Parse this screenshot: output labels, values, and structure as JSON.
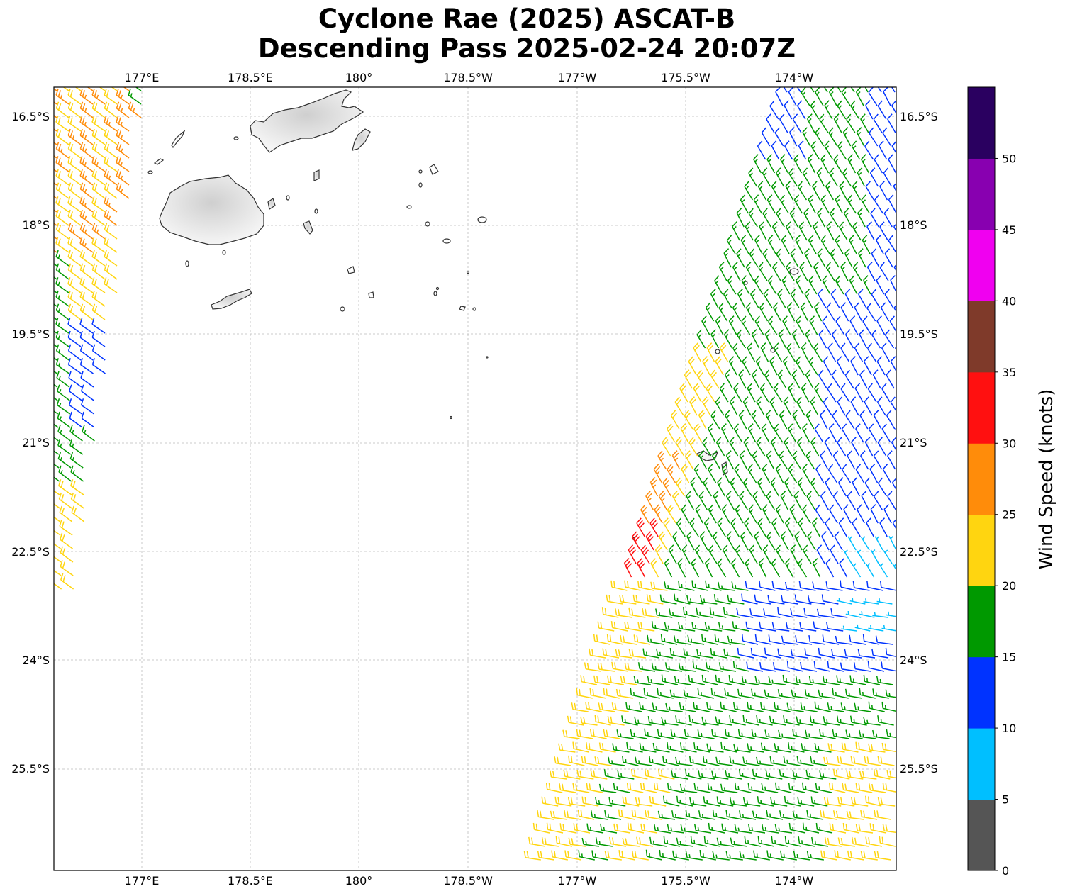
{
  "title_line1": "Cyclone Rae (2025) ASCAT-B",
  "title_line2": "Descending Pass 2025-02-24 20:07Z",
  "map": {
    "lon_labels": [
      "177°E",
      "178.5°E",
      "180°",
      "178.5°W",
      "177°W",
      "175.5°W",
      "174°W"
    ],
    "lat_labels": [
      "16.5°S",
      "18°S",
      "19.5°S",
      "21°S",
      "22.5°S",
      "24°S",
      "25.5°S"
    ],
    "land_color": "#e8e8e8",
    "coast_color": "#333333",
    "grid": "dashed"
  },
  "colorbar": {
    "label": "Wind Speed (knots)",
    "ticks": [
      "0",
      "5",
      "10",
      "15",
      "20",
      "25",
      "30",
      "35",
      "40",
      "45",
      "50"
    ],
    "bins": [
      {
        "from": 0,
        "to": 5,
        "color": "#555555"
      },
      {
        "from": 5,
        "to": 10,
        "color": "#00bfff"
      },
      {
        "from": 10,
        "to": 15,
        "color": "#0033ff"
      },
      {
        "from": 15,
        "to": 20,
        "color": "#009900"
      },
      {
        "from": 20,
        "to": 25,
        "color": "#ffd510"
      },
      {
        "from": 25,
        "to": 30,
        "color": "#ff8c0a"
      },
      {
        "from": 30,
        "to": 35,
        "color": "#ff1010"
      },
      {
        "from": 35,
        "to": 40,
        "color": "#7f3a2a"
      },
      {
        "from": 40,
        "to": 45,
        "color": "#f000f0"
      },
      {
        "from": 45,
        "to": 50,
        "color": "#8800b0"
      },
      {
        "from": 50,
        "to": 55,
        "color": "#2a0060"
      }
    ]
  },
  "chart_data": {
    "type": "scatter",
    "description_units": "wind barbs, speed in knots",
    "swaths": [
      {
        "name_side": "west",
        "winds_kt": [
          10,
          15,
          20,
          25
        ],
        "dominant_direction": "southeast"
      },
      {
        "name_side": "east",
        "winds_kt": [
          5,
          10,
          15,
          20,
          25,
          30,
          35
        ],
        "dominant_direction": "southeast"
      }
    ]
  }
}
